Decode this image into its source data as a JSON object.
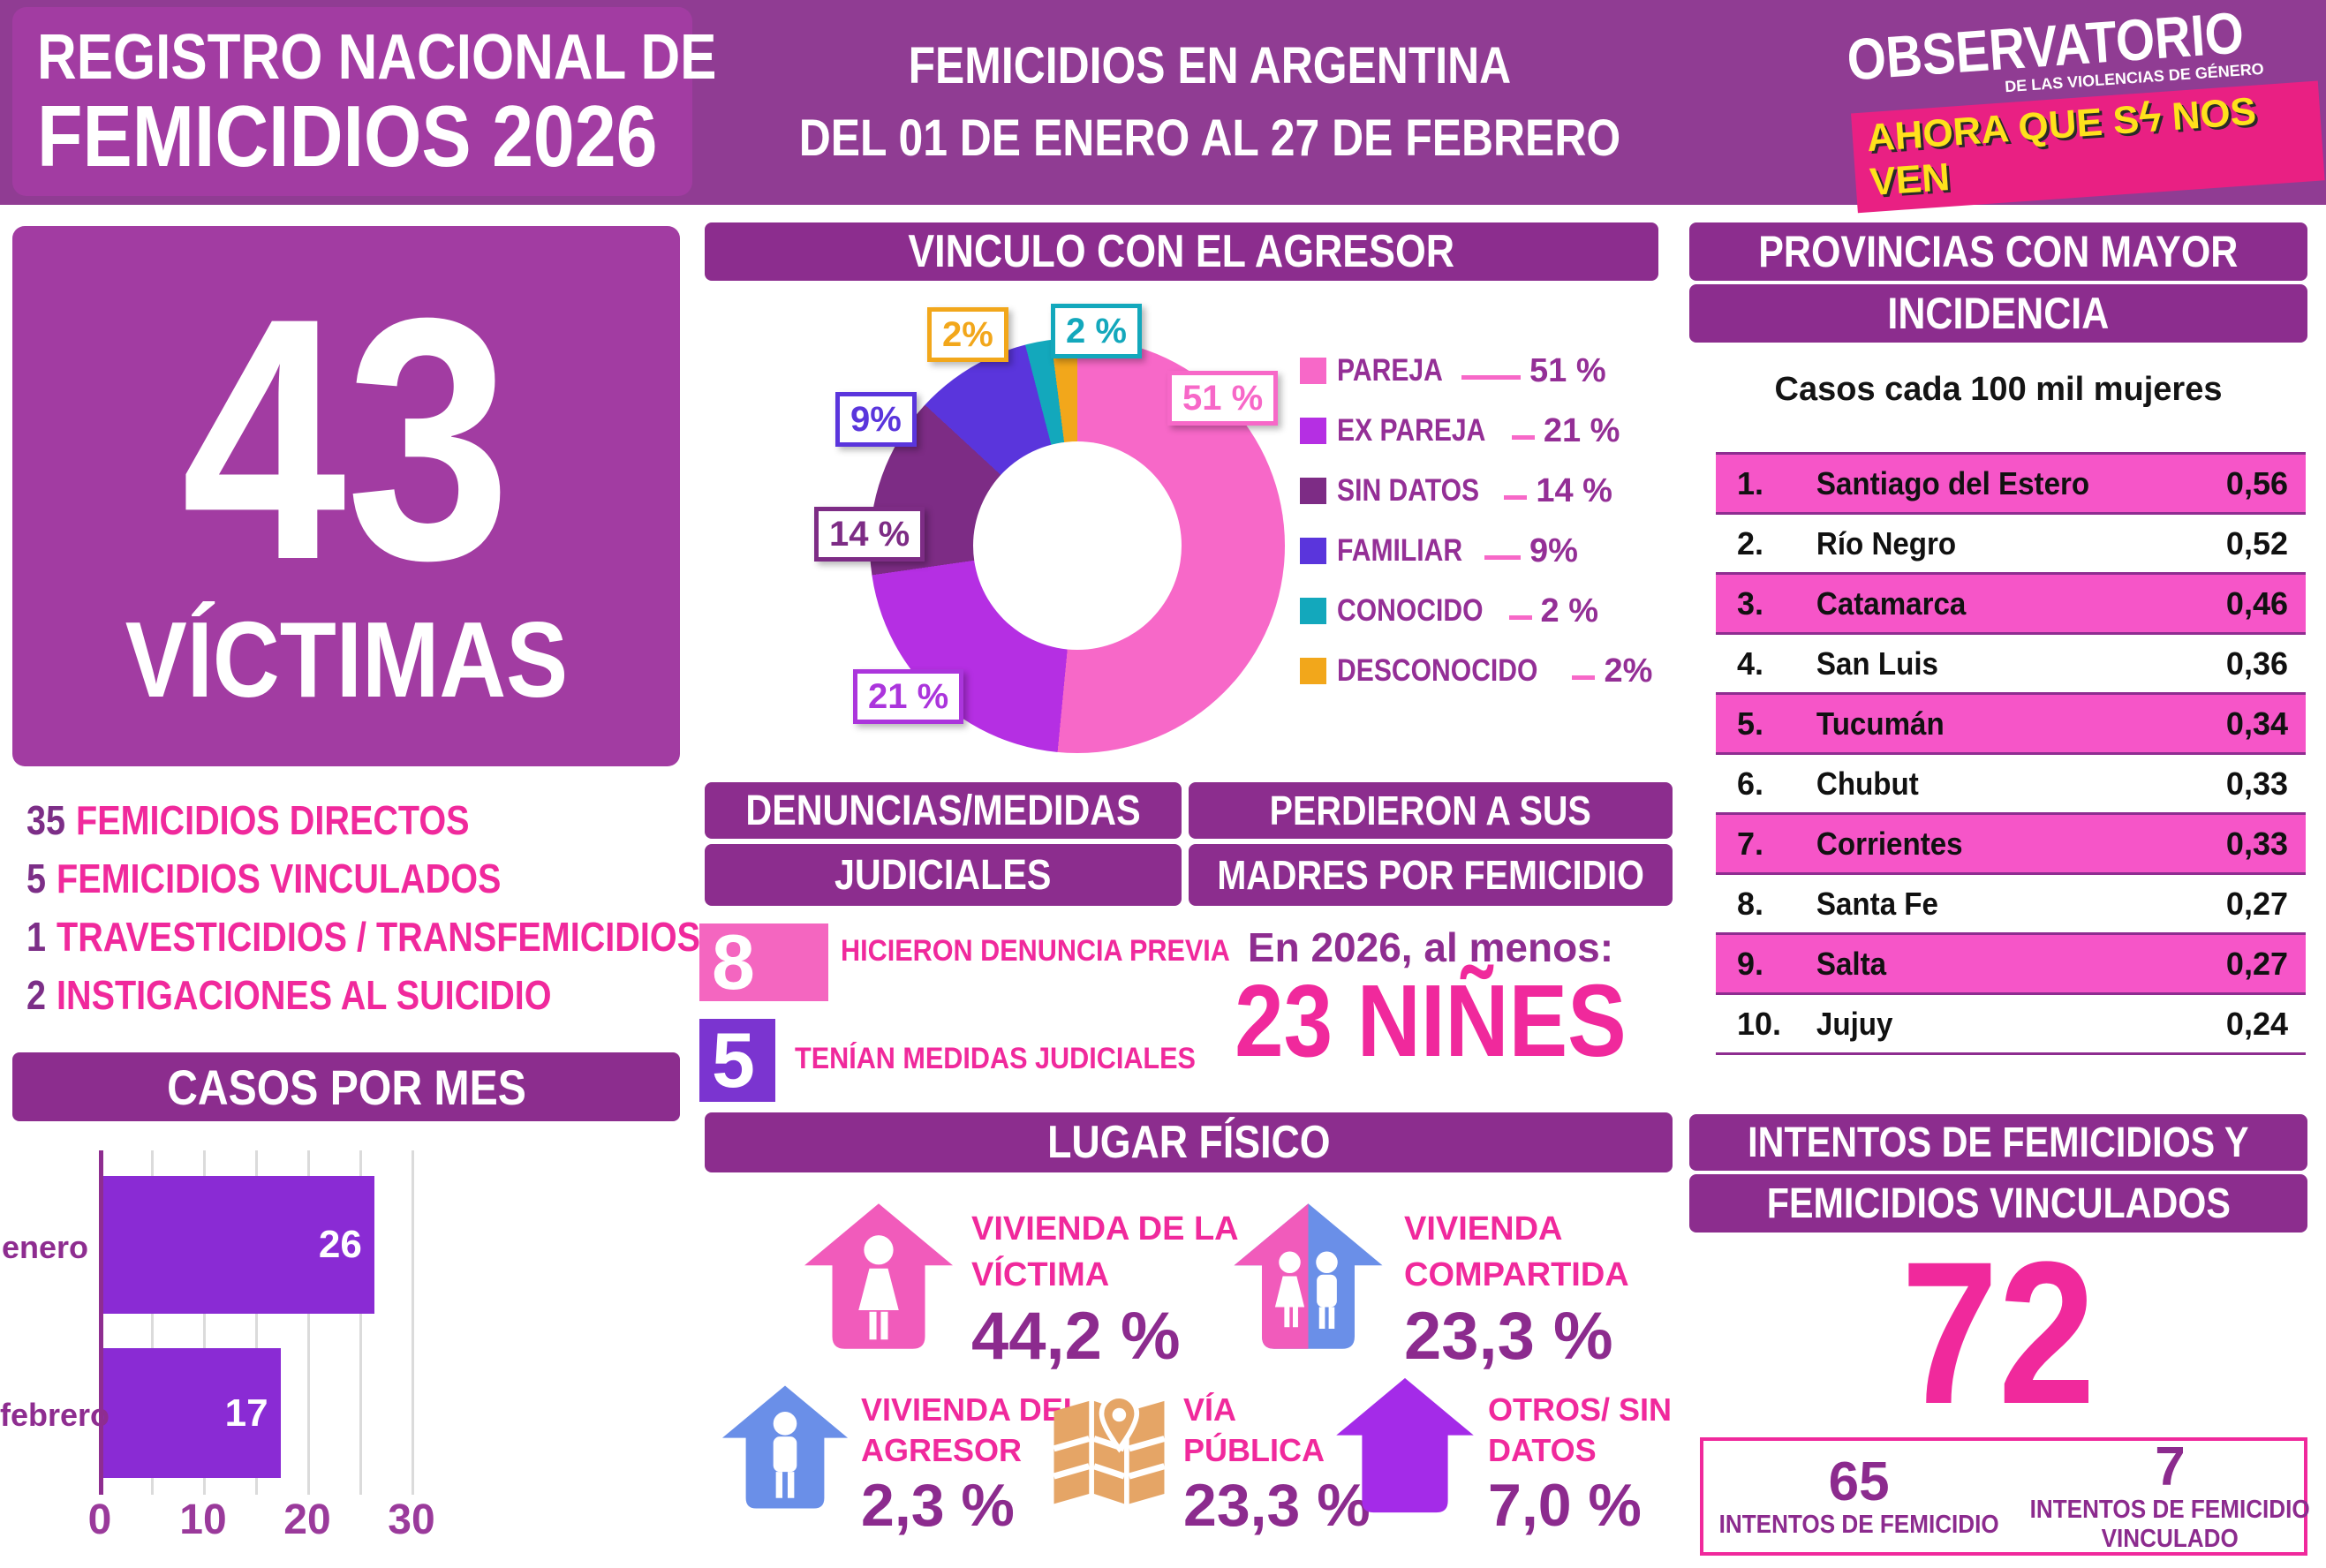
{
  "colors": {
    "strip": "#903C93",
    "banner": "#8C2D8E",
    "box_purple": "#A23CA2",
    "pink_text": "#F0299C",
    "purple_number": "#7C2E87",
    "bar_purple": "#8A2BD4",
    "row_pink": "#F655C8",
    "logo_strip_pink": "#E92083",
    "logo_yellow": "#FFE11C"
  },
  "header": {
    "title": [
      "REGISTRO NACIONAL DE",
      "FEMICIDIOS 2026"
    ],
    "subtitle": [
      "FEMICIDIOS EN ARGENTINA",
      "DEL 01 DE ENERO AL 27 DE FEBRERO"
    ],
    "logo": {
      "name": "OBSERVATORIO",
      "tagline": "DE LAS VIOLENCIAS DE GÉNERO",
      "slogan_pre": "AHORA QUE S",
      "slogan_bolt": "ϟ",
      "slogan_post": " NOS VEN"
    }
  },
  "victims": {
    "count": "43",
    "label": "VÍCTIMAS"
  },
  "breakdown": [
    {
      "number": "35",
      "label": "FEMICIDIOS DIRECTOS"
    },
    {
      "number": "5",
      "label": "FEMICIDIOS VINCULADOS"
    },
    {
      "number": "1",
      "label": "TRAVESTICIDIOS / TRANSFEMICIDIOS"
    },
    {
      "number": "2",
      "label": "INSTIGACIONES AL SUICIDIO"
    }
  ],
  "casos_por_mes": {
    "title": "CASOS POR MES",
    "bars": [
      {
        "label": "enero",
        "value": 26
      },
      {
        "label": "febrero",
        "value": 17
      }
    ],
    "ticks": [
      "0",
      "10",
      "20",
      "30"
    ]
  },
  "vinculo": {
    "title": "VINCULO CON EL AGRESOR",
    "slices": [
      {
        "label": "PAREJA",
        "value": "51 %",
        "pct": 51,
        "color": "#F768C8"
      },
      {
        "label": "EX PAREJA",
        "value": "21 %",
        "pct": 21,
        "color": "#B52FE3"
      },
      {
        "label": "SIN DATOS",
        "value": "14 %",
        "pct": 14,
        "color": "#7D2C85"
      },
      {
        "label": "FAMILIAR",
        "value": "9%",
        "pct": 9,
        "color": "#5A35DC"
      },
      {
        "label": "CONOCIDO",
        "value": "2 %",
        "pct": 2,
        "color": "#13A8BC"
      },
      {
        "label": "DESCONOCIDO",
        "value": "2%",
        "pct": 2,
        "color": "#F2A71B"
      }
    ],
    "callouts": [
      {
        "text": "51 %",
        "color": "#F768C8"
      },
      {
        "text": "21 %",
        "color": "#AB35DC"
      },
      {
        "text": "14 %",
        "color": "#7D2C85"
      },
      {
        "text": "9%",
        "color": "#5A35DC"
      },
      {
        "text": "2 %",
        "color": "#13A8BC"
      },
      {
        "text": "2%",
        "color": "#F2A71B"
      }
    ]
  },
  "denuncias": {
    "title": [
      "DENUNCIAS/MEDIDAS",
      "JUDICIALES"
    ],
    "items": [
      {
        "number": "8",
        "label": "HICIERON DENUNCIA PREVIA",
        "color": "#F466C0"
      },
      {
        "number": "5",
        "label": "TENÍAN MEDIDAS JUDICIALES",
        "color": "#7B34D0"
      }
    ]
  },
  "perdieron": {
    "title": [
      "PERDIERON A SUS",
      "MADRES POR FEMICIDIO"
    ],
    "intro": "En 2026, al menos:",
    "highlight": "23 NIÑES"
  },
  "lugar": {
    "title": "LUGAR FÍSICO",
    "items": [
      {
        "icon": "house-victim-icon",
        "label": [
          "VIVIENDA DE LA",
          "VÍCTIMA"
        ],
        "value": "44,2 %"
      },
      {
        "icon": "house-shared-icon",
        "label": [
          "VIVIENDA",
          "COMPARTIDA"
        ],
        "value": "23,3 %"
      },
      {
        "icon": "house-aggressor-icon",
        "label": [
          "VIVIENDA DEL",
          "AGRESOR"
        ],
        "value": "2,3 %"
      },
      {
        "icon": "map-pin-icon",
        "label": [
          "VÍA",
          "PÚBLICA"
        ],
        "value": "23,3 %"
      },
      {
        "icon": "house-other-icon",
        "label": [
          "OTROS/ SIN",
          "DATOS"
        ],
        "value": "7,0 %"
      }
    ]
  },
  "provincias": {
    "title": [
      "PROVINCIAS CON MAYOR",
      "INCIDENCIA"
    ],
    "subtitle": "Casos cada 100 mil mujeres",
    "rows": [
      {
        "rank": "1.",
        "name": "Santiago del Estero",
        "value": "0,56"
      },
      {
        "rank": "2.",
        "name": "Río Negro",
        "value": "0,52"
      },
      {
        "rank": "3.",
        "name": "Catamarca",
        "value": "0,46"
      },
      {
        "rank": "4.",
        "name": "San Luis",
        "value": "0,36"
      },
      {
        "rank": "5.",
        "name": "Tucumán",
        "value": "0,34"
      },
      {
        "rank": "6.",
        "name": "Chubut",
        "value": "0,33"
      },
      {
        "rank": "7.",
        "name": "Corrientes",
        "value": "0,33"
      },
      {
        "rank": "8.",
        "name": "Santa Fe",
        "value": "0,27"
      },
      {
        "rank": "9.",
        "name": "Salta",
        "value": "0,27"
      },
      {
        "rank": "10.",
        "name": "Jujuy",
        "value": "0,24"
      }
    ]
  },
  "intentos": {
    "title": [
      "INTENTOS DE FEMICIDIOS Y",
      "FEMICIDIOS VINCULADOS"
    ],
    "total": "72",
    "detail": [
      {
        "number": "65",
        "label": [
          "INTENTOS DE FEMICIDIO"
        ]
      },
      {
        "number": "7",
        "label": [
          "INTENTOS DE FEMICIDIO",
          "VINCULADO"
        ]
      }
    ]
  },
  "chart_data": [
    {
      "type": "pie",
      "title": "VINCULO CON EL AGRESOR",
      "labels": [
        "PAREJA",
        "EX PAREJA",
        "SIN DATOS",
        "FAMILIAR",
        "CONOCIDO",
        "DESCONOCIDO"
      ],
      "values": [
        51,
        21,
        14,
        9,
        2,
        2
      ],
      "unit": "%",
      "colors": [
        "#F768C8",
        "#B52FE3",
        "#7D2C85",
        "#5A35DC",
        "#13A8BC",
        "#F2A71B"
      ],
      "hole": true,
      "legend_position": "right"
    },
    {
      "type": "bar",
      "title": "CASOS POR MES",
      "orientation": "horizontal",
      "categories": [
        "enero",
        "febrero"
      ],
      "values": [
        26,
        17
      ],
      "xlabel": "",
      "ylabel": "",
      "xlim": [
        0,
        30
      ],
      "xticks": [
        0,
        10,
        20,
        30
      ],
      "grid": true
    },
    {
      "type": "table",
      "title": "PROVINCIAS CON MAYOR INCIDENCIA",
      "subtitle": "Casos cada 100 mil mujeres",
      "columns": [
        "rank",
        "provincia",
        "casos cada 100 mil mujeres"
      ],
      "rows": [
        [
          "1.",
          "Santiago del Estero",
          "0,56"
        ],
        [
          "2.",
          "Río Negro",
          "0,52"
        ],
        [
          "3.",
          "Catamarca",
          "0,46"
        ],
        [
          "4.",
          "San Luis",
          "0,36"
        ],
        [
          "5.",
          "Tucumán",
          "0,34"
        ],
        [
          "6.",
          "Chubut",
          "0,33"
        ],
        [
          "7.",
          "Corrientes",
          "0,33"
        ],
        [
          "8.",
          "Santa Fe",
          "0,27"
        ],
        [
          "9.",
          "Salta",
          "0,27"
        ],
        [
          "10.",
          "Jujuy",
          "0,24"
        ]
      ]
    }
  ]
}
